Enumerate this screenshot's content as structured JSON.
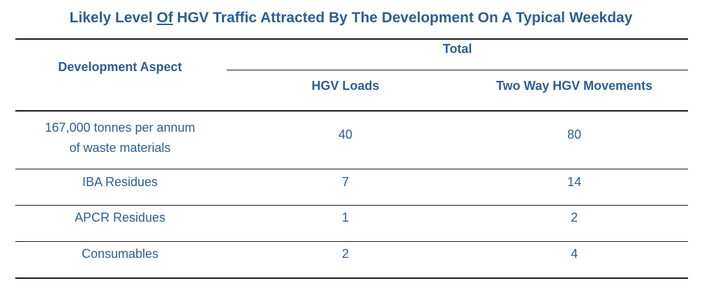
{
  "title": {
    "before": "Likely Level ",
    "underlined": "Of",
    "after": " HGV Traffic Attracted By The Development On A Typical Weekday"
  },
  "header": {
    "aspect": "Development Aspect",
    "group": "Total",
    "col1": "HGV Loads",
    "col2": "Two Way HGV Movements"
  },
  "rows": [
    {
      "aspect_line1": "167,000 tonnes per annum",
      "aspect_line2": "of waste materials",
      "loads": "40",
      "movements": "80"
    },
    {
      "aspect": "IBA Residues",
      "loads": "7",
      "movements": "14"
    },
    {
      "aspect": "APCR Residues",
      "loads": "1",
      "movements": "2"
    },
    {
      "aspect": "Consumables",
      "loads": "2",
      "movements": "4"
    }
  ]
}
